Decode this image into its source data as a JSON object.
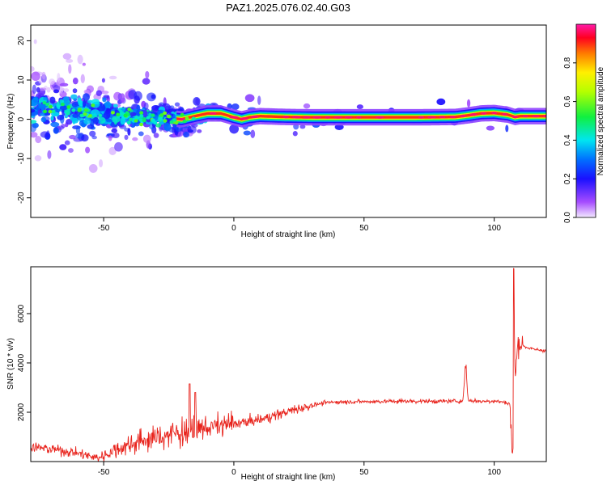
{
  "title": "PAZ1.2025.076.02.40.G03",
  "chart_data": [
    {
      "type": "heatmap",
      "title": "PAZ1.2025.076.02.40.G03",
      "xlabel": "Height of straight line (km)",
      "ylabel": "Frequency (Hz)",
      "xlim": [
        -78,
        120
      ],
      "ylim": [
        -25,
        24
      ],
      "xticks": [
        -50,
        0,
        50,
        100
      ],
      "yticks": [
        -20,
        -10,
        0,
        10,
        20
      ],
      "xtick_labels": [
        "-50",
        "0",
        "50",
        "100"
      ],
      "ytick_labels": [
        "-20",
        "-10",
        "0",
        "10",
        "20"
      ],
      "grid": false,
      "colorbar": {
        "label": "Normalized spectral amplitude",
        "range": [
          0,
          1
        ],
        "ticks": [
          "0.0",
          "0.2",
          "0.4",
          "0.6",
          "0.8"
        ],
        "tick_values": [
          0.0,
          0.2,
          0.4,
          0.6,
          0.8
        ],
        "colormap": "rainbow (white-violet-blue-cyan-green-yellow-red-magenta)"
      },
      "ridge": {
        "x": [
          -78,
          -70,
          -60,
          -50,
          -40,
          -30,
          -25,
          -20,
          -15,
          -10,
          -5,
          0,
          3,
          6,
          10,
          20,
          30,
          50,
          70,
          85,
          90,
          95,
          100,
          105,
          108,
          110,
          120
        ],
        "freq": [
          4.0,
          3.0,
          2.2,
          1.5,
          1.0,
          0.6,
          0.3,
          0.0,
          0.8,
          1.5,
          1.5,
          0.5,
          0.0,
          0.5,
          0.8,
          0.6,
          0.5,
          0.5,
          0.5,
          0.6,
          1.0,
          1.5,
          1.6,
          1.2,
          0.6,
          0.8,
          0.8
        ]
      }
    },
    {
      "type": "line",
      "xlabel": "Height of straight line (km)",
      "ylabel": "SNR (10 * v/v)",
      "xlim": [
        -78,
        120
      ],
      "ylim": [
        0,
        7900
      ],
      "xticks": [
        -50,
        0,
        50,
        100
      ],
      "yticks": [
        2000,
        4000,
        6000
      ],
      "xtick_labels": [
        "-50",
        "0",
        "50",
        "100"
      ],
      "ytick_labels": [
        "2000",
        "4000",
        "6000"
      ],
      "grid": false,
      "color": "#e8231c",
      "series": [
        {
          "x": [
            -78,
            -70,
            -60,
            -55,
            -52,
            -50,
            -45,
            -40,
            -35,
            -30,
            -25,
            -20,
            -15,
            -10,
            -5,
            0,
            5,
            10,
            15,
            20,
            25,
            30,
            35,
            40,
            50,
            60,
            70,
            80,
            85,
            88,
            89,
            90,
            95,
            100,
            104,
            106,
            107,
            107.5,
            108,
            109,
            110,
            112,
            115,
            120
          ],
          "y": [
            600,
            500,
            350,
            200,
            150,
            250,
            500,
            700,
            850,
            950,
            1100,
            1200,
            1300,
            1400,
            1450,
            1550,
            1600,
            1700,
            1850,
            2000,
            2150,
            2280,
            2380,
            2420,
            2430,
            2440,
            2450,
            2440,
            2450,
            2460,
            3950,
            2480,
            2440,
            2460,
            2400,
            2350,
            200,
            7850,
            3200,
            4750,
            4800,
            4650,
            4550,
            4500
          ]
        }
      ]
    }
  ]
}
